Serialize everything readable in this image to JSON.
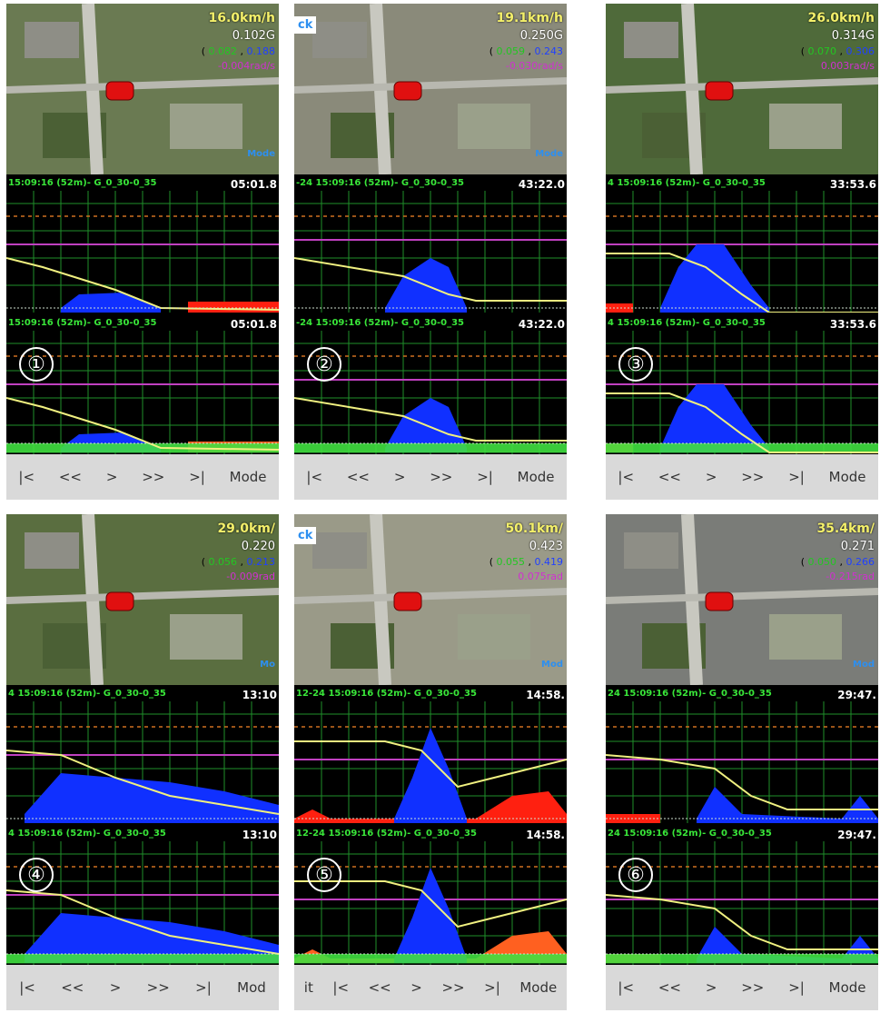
{
  "panels": [
    {
      "speed": "16.0km/h",
      "g": "0.102G",
      "vec_g": "0.082",
      "vec_b": "0.188",
      "rad": "-0.004rad/s",
      "mode_tag": "Mode",
      "back": "",
      "header": "15:09:16 (52m)- G_0_30-0_35",
      "time": "05:01.8",
      "number": "①",
      "controls": [
        "|<",
        "<<",
        ">",
        ">>",
        ">|",
        "Mode"
      ]
    },
    {
      "speed": "19.1km/h",
      "g": "0.250G",
      "vec_g": "0.059",
      "vec_b": "0.243",
      "rad": "-0.030rad/s",
      "mode_tag": "Mode",
      "back": "ck",
      "header": "-24 15:09:16 (52m)- G_0_30-0_35",
      "time": "43:22.0",
      "number": "②",
      "controls": [
        "|<",
        "<<",
        ">",
        ">>",
        ">|",
        "Mode"
      ]
    },
    {
      "speed": "26.0km/h",
      "g": "0.314G",
      "vec_g": "0.070",
      "vec_b": "0.306",
      "rad": "0.003rad/s",
      "mode_tag": "",
      "back": "",
      "header": "4 15:09:16 (52m)- G_0_30-0_35",
      "time": "33:53.6",
      "number": "③",
      "controls": [
        "|<",
        "<<",
        ">",
        ">>",
        ">|",
        "Mode"
      ]
    },
    {
      "speed": "29.0km/",
      "g": "0.220",
      "vec_g": "0.056",
      "vec_b": "0.213",
      "rad": "-0.009rad",
      "mode_tag": "Mo",
      "back": "",
      "header": "4 15:09:16 (52m)- G_0_30-0_35",
      "time": "13:10",
      "number": "④",
      "controls": [
        "|<",
        "<<",
        ">",
        ">>",
        ">|",
        "Mod"
      ]
    },
    {
      "speed": "50.1km/",
      "g": "0.423",
      "vec_g": "0.055",
      "vec_b": "0.419",
      "rad": "0.075rad",
      "mode_tag": "Mod",
      "back": "ck",
      "header": "12-24 15:09:16 (52m)- G_0_30-0_35",
      "time": "14:58.",
      "number": "⑤",
      "controls": [
        "it",
        "|<",
        "<<",
        ">",
        ">>",
        ">|",
        "Mode"
      ]
    },
    {
      "speed": "35.4km/",
      "g": "0.271",
      "vec_g": "0.050",
      "vec_b": "0.266",
      "rad": "-0.215rad",
      "mode_tag": "Mod",
      "back": "",
      "header": "24 15:09:16 (52m)- G_0_30-0_35",
      "time": "29:47.",
      "number": "⑥",
      "controls": [
        "|<",
        "<<",
        ">",
        ">>",
        ">|",
        "Mode"
      ]
    }
  ],
  "colors": {
    "speed": "#f4f06a",
    "grid": "#1f8f2a",
    "magenta": "#c040c0",
    "blue": "#1030ff",
    "red": "#ff2010",
    "yellow": "#f0f080",
    "orange_dash": "#d07020"
  }
}
